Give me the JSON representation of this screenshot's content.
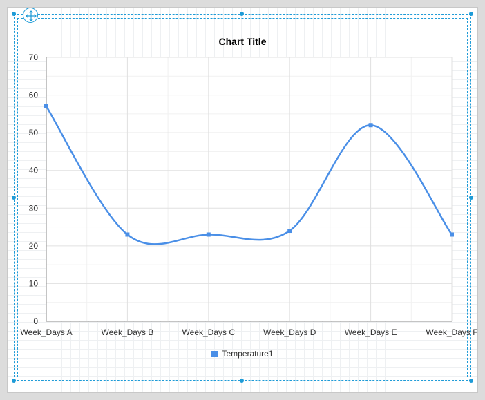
{
  "chart_data": {
    "type": "line",
    "title": "Chart Title",
    "categories": [
      "Week_Days A",
      "Week_Days B",
      "Week_Days C",
      "Week_Days D",
      "Week_Days E",
      "Week_Days F"
    ],
    "series": [
      {
        "name": "Temperature1",
        "values": [
          57,
          23,
          23,
          24,
          52,
          23
        ],
        "color": "#4a8fe7"
      }
    ],
    "xlabel": "",
    "ylabel": "",
    "ylim": [
      0,
      70
    ],
    "yticks": [
      0,
      10,
      20,
      30,
      40,
      50,
      60,
      70
    ],
    "grid": true,
    "smooth": true,
    "legend_position": "bottom"
  },
  "designer": {
    "move_icon": "move-arrows-icon",
    "accent_color": "#1e9bd7"
  }
}
